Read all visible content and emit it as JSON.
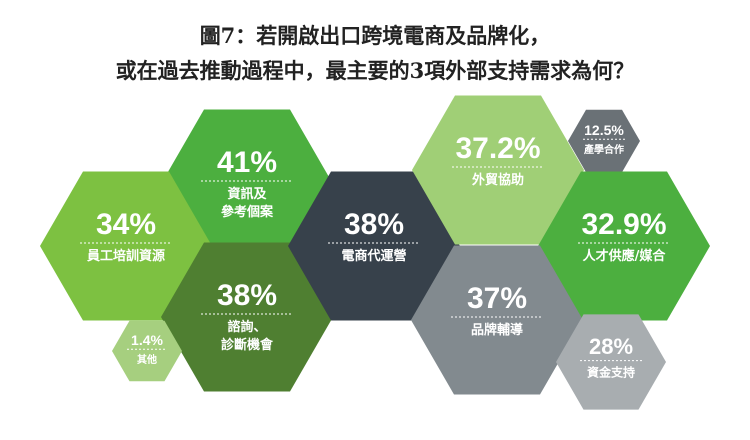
{
  "title": {
    "line1": "圖7：若開啟出口跨境電商及品牌化，",
    "line2": "或在過去推動過程中，最主要的3項外部支持需求為何？"
  },
  "chart_data": {
    "type": "hexagon-bubble",
    "items": [
      {
        "label": "資訊及\n參考個案",
        "value": "41%",
        "color": "#4caf3f"
      },
      {
        "label": "員工培訓資源",
        "value": "34%",
        "color": "#7dc141"
      },
      {
        "label": "諮詢、\n診斷機會",
        "value": "38%",
        "color": "#4f7f31"
      },
      {
        "label": "其他",
        "value": "1.4%",
        "color": "#a6cf7f"
      },
      {
        "label": "電商代運營",
        "value": "38%",
        "color": "#37414b"
      },
      {
        "label": "外貿協助",
        "value": "37.2%",
        "color": "#a0cf76"
      },
      {
        "label": "產學合作",
        "value": "12.5%",
        "color": "#6a7176"
      },
      {
        "label": "人才供應/媒合",
        "value": "32.9%",
        "color": "#4caf3f"
      },
      {
        "label": "品牌輔導",
        "value": "37%",
        "color": "#828a8f"
      },
      {
        "label": "資金支持",
        "value": "28%",
        "color": "#a8adb0"
      }
    ]
  }
}
